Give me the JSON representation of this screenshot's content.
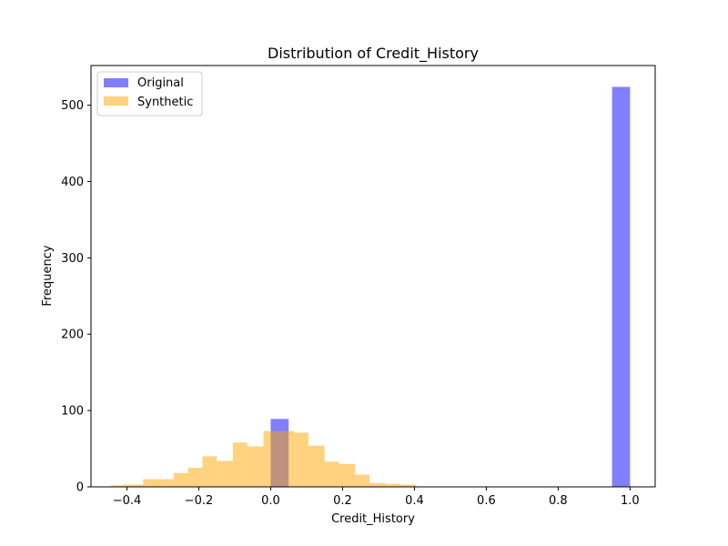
{
  "chart_data": {
    "type": "bar",
    "title": "Distribution of Credit_History",
    "xlabel": "Credit_History",
    "ylabel": "Frequency",
    "xlim": [
      -0.5,
      1.07
    ],
    "ylim": [
      0,
      552
    ],
    "xticks": [
      -0.4,
      -0.2,
      0.0,
      0.2,
      0.4,
      0.6,
      0.8,
      1.0
    ],
    "xtick_labels": [
      "−0.4",
      "−0.2",
      "0.0",
      "0.2",
      "0.4",
      "0.6",
      "0.8",
      "1.0"
    ],
    "yticks": [
      0,
      100,
      200,
      300,
      400,
      500
    ],
    "ytick_labels": [
      "0",
      "100",
      "200",
      "300",
      "400",
      "500"
    ],
    "grid": false,
    "legend_position": "top-left",
    "series": [
      {
        "name": "Original",
        "color": "#0000ff",
        "opacity": 0.5,
        "bins": [
          {
            "x0": 0.0,
            "x1": 0.05,
            "count": 89
          },
          {
            "x0": 0.95,
            "x1": 1.0,
            "count": 524
          }
        ]
      },
      {
        "name": "Synthetic",
        "color": "#ffa500",
        "opacity": 0.5,
        "bins": [
          {
            "x0": -0.445,
            "x1": -0.41,
            "count": 2
          },
          {
            "x0": -0.41,
            "x1": -0.355,
            "count": 3
          },
          {
            "x0": -0.355,
            "x1": -0.27,
            "count": 10
          },
          {
            "x0": -0.27,
            "x1": -0.23,
            "count": 18
          },
          {
            "x0": -0.23,
            "x1": -0.19,
            "count": 25
          },
          {
            "x0": -0.19,
            "x1": -0.15,
            "count": 40
          },
          {
            "x0": -0.15,
            "x1": -0.105,
            "count": 34
          },
          {
            "x0": -0.105,
            "x1": -0.065,
            "count": 58
          },
          {
            "x0": -0.065,
            "x1": -0.02,
            "count": 53
          },
          {
            "x0": -0.02,
            "x1": 0.065,
            "count": 73
          },
          {
            "x0": 0.065,
            "x1": 0.105,
            "count": 71
          },
          {
            "x0": 0.105,
            "x1": 0.15,
            "count": 54
          },
          {
            "x0": 0.15,
            "x1": 0.19,
            "count": 33
          },
          {
            "x0": 0.19,
            "x1": 0.235,
            "count": 30
          },
          {
            "x0": 0.235,
            "x1": 0.275,
            "count": 16
          },
          {
            "x0": 0.275,
            "x1": 0.32,
            "count": 5
          },
          {
            "x0": 0.32,
            "x1": 0.36,
            "count": 4
          },
          {
            "x0": 0.36,
            "x1": 0.405,
            "count": 3
          }
        ]
      }
    ]
  }
}
